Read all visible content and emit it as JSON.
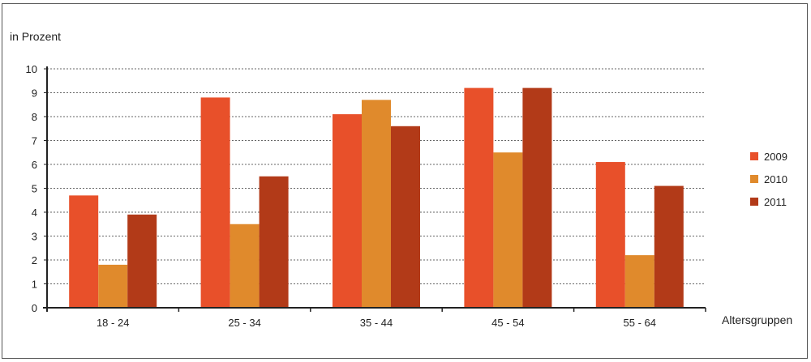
{
  "chart_data": {
    "type": "bar",
    "ylabel": "in Prozent",
    "xlabel": "Altersgruppen",
    "ylim": [
      0,
      10
    ],
    "yticks": [
      0,
      1,
      2,
      3,
      4,
      5,
      6,
      7,
      8,
      9,
      10
    ],
    "grid": true,
    "legend_position": "right",
    "categories": [
      "18 - 24",
      "25 - 34",
      "35 - 44",
      "45 - 54",
      "55 - 64"
    ],
    "series": [
      {
        "name": "2009",
        "color": "#e8502a",
        "values": [
          4.7,
          8.8,
          8.1,
          9.2,
          6.1
        ]
      },
      {
        "name": "2010",
        "color": "#e08a2c",
        "values": [
          1.8,
          3.5,
          8.7,
          6.5,
          2.2
        ]
      },
      {
        "name": "2011",
        "color": "#b23a18",
        "values": [
          3.9,
          5.5,
          7.6,
          9.2,
          5.1
        ]
      }
    ]
  }
}
